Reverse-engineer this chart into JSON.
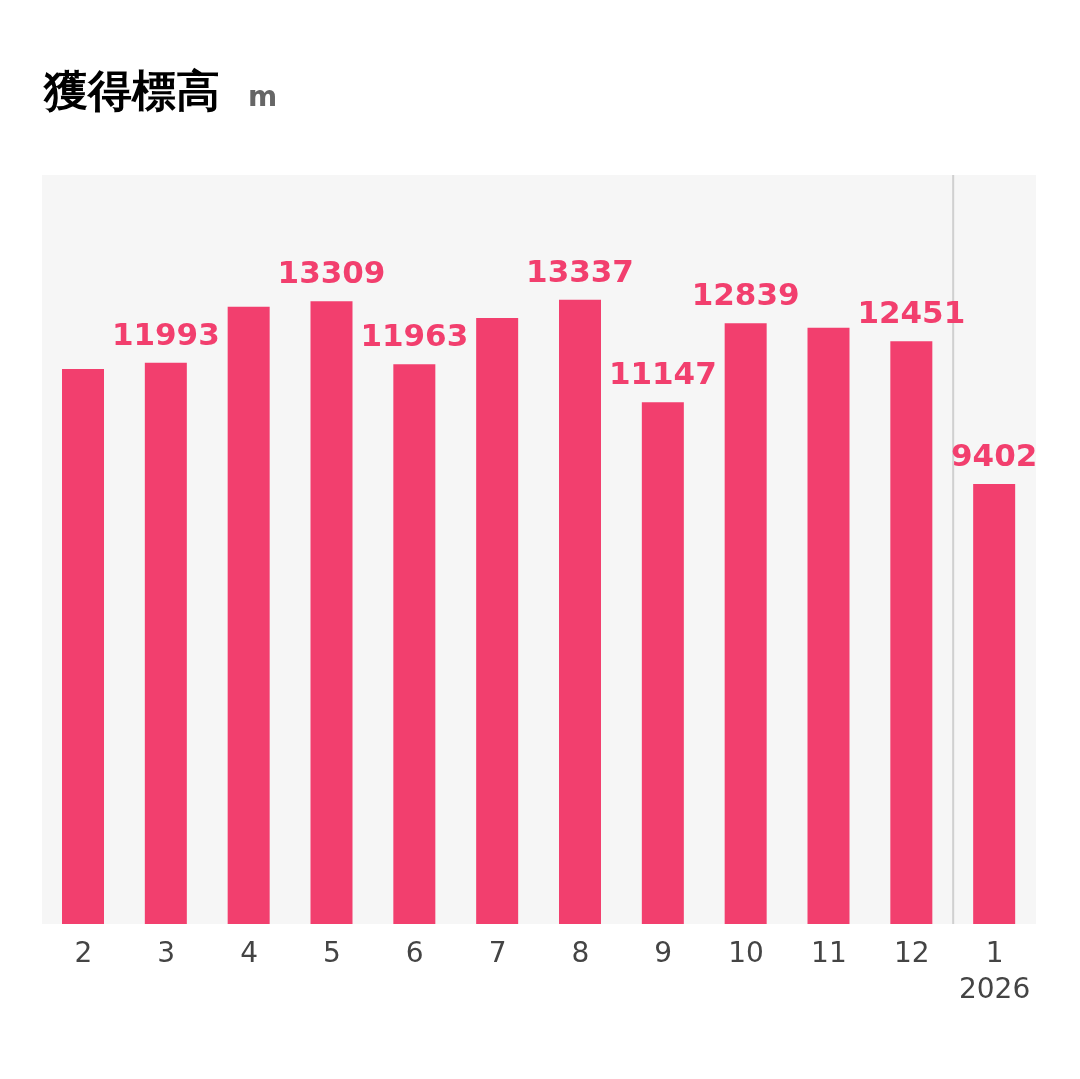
{
  "chart_data": {
    "type": "bar",
    "title": "獲得標高",
    "annotations": [
      "m"
    ],
    "categories": [
      "2",
      "3",
      "4",
      "5",
      "6",
      "7",
      "8",
      "9",
      "10",
      "11",
      "12",
      "1\n2026"
    ],
    "values": [
      11860,
      11993,
      13190,
      13309,
      11963,
      12950,
      13337,
      11147,
      12839,
      12740,
      12451,
      9402
    ],
    "value_labels": [
      null,
      "11993",
      null,
      "13309",
      "11963",
      null,
      "13337",
      "11147",
      "12839",
      null,
      "12451",
      "9402"
    ],
    "color": "#f23f6e"
  }
}
